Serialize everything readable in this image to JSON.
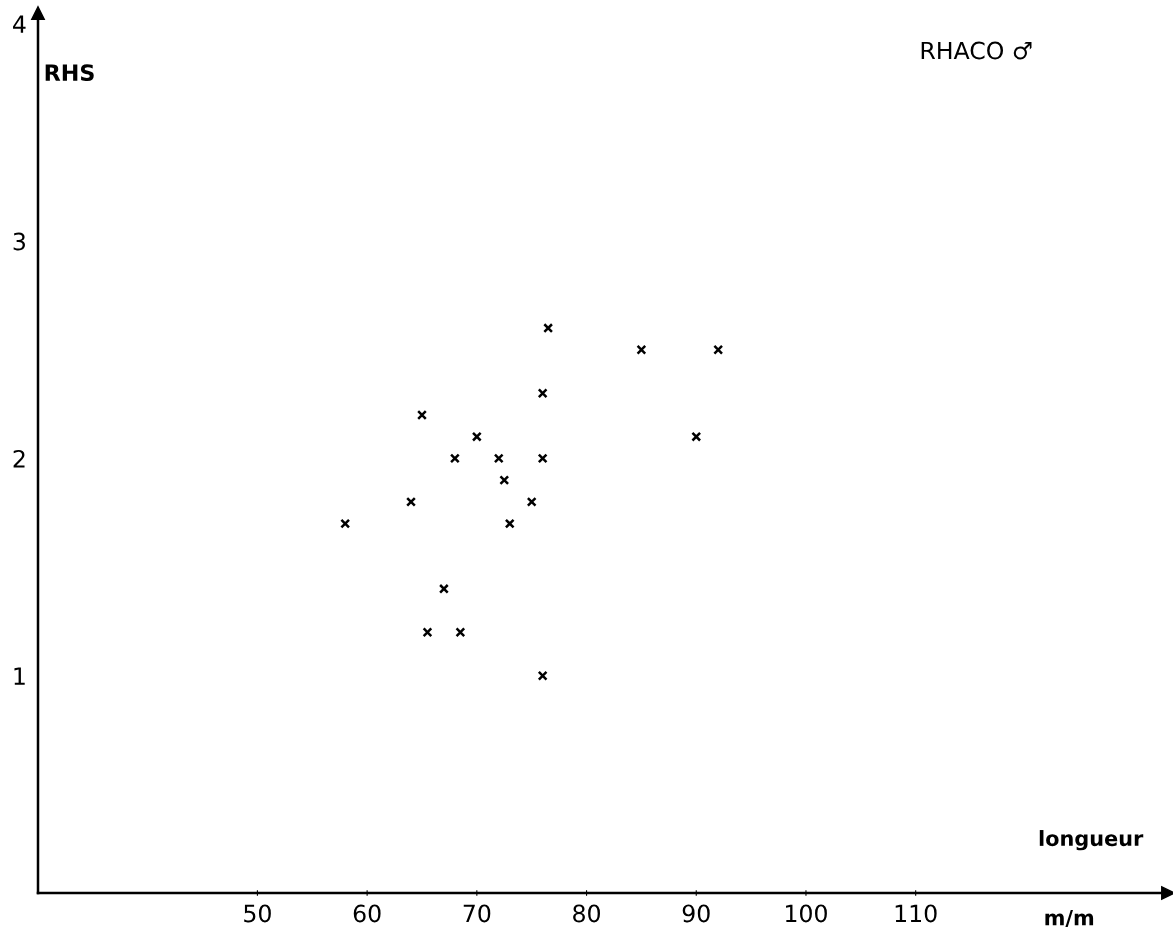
{
  "chart_data": {
    "type": "scatter",
    "title": "RHACO ♂",
    "xlabel": "longueur",
    "ylabel": "RHS",
    "annotations": [
      "m/m"
    ],
    "x": [
      58,
      64,
      65,
      68,
      70,
      72,
      72.5,
      73,
      75,
      76,
      76,
      76.5,
      67,
      65.5,
      68.5,
      76,
      85,
      92,
      90
    ],
    "values": [
      1.7,
      1.8,
      2.2,
      2.0,
      2.1,
      2.0,
      1.9,
      1.7,
      1.8,
      2.0,
      2.3,
      2.6,
      1.4,
      1.2,
      1.2,
      1.0,
      2.5,
      2.5,
      2.1
    ],
    "color": "#000000",
    "marker": "cross",
    "grid": false,
    "legend": false,
    "xlim": [
      30,
      133
    ],
    "ylim": [
      0,
      4.05
    ],
    "xticks": [
      50,
      60,
      70,
      80,
      90,
      100,
      110
    ],
    "yticks": [
      1,
      2,
      3,
      4
    ]
  }
}
